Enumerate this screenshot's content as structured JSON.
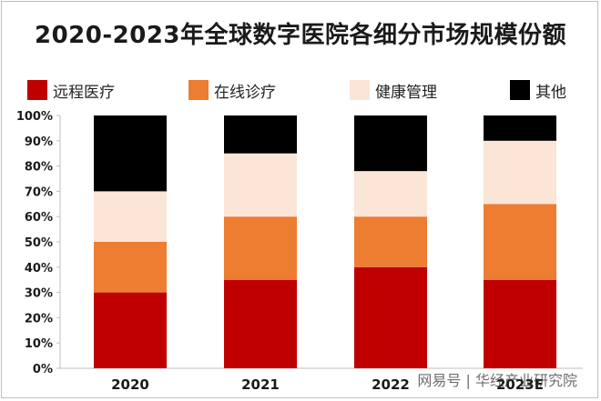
{
  "title": "2020-2023年全球数字医院各细分市场规模份额",
  "watermark": "网易号 | 华经产业研究院",
  "chart_data": {
    "type": "bar",
    "stacked": true,
    "categories": [
      "2020",
      "2021",
      "2022",
      "2023E"
    ],
    "series": [
      {
        "name": "远程医疗",
        "color": "#c00000",
        "values": [
          30,
          35,
          40,
          35
        ]
      },
      {
        "name": "在线诊疗",
        "color": "#ed7d31",
        "values": [
          20,
          25,
          20,
          30
        ]
      },
      {
        "name": "健康管理",
        "color": "#fbe5d6",
        "values": [
          20,
          25,
          18,
          25
        ]
      },
      {
        "name": "其他",
        "color": "#000000",
        "values": [
          30,
          15,
          22,
          10
        ]
      }
    ],
    "ylim": [
      0,
      100
    ],
    "yticks": [
      "0%",
      "10%",
      "20%",
      "30%",
      "40%",
      "50%",
      "60%",
      "70%",
      "80%",
      "90%",
      "100%"
    ],
    "legend": "top",
    "grid": false
  }
}
